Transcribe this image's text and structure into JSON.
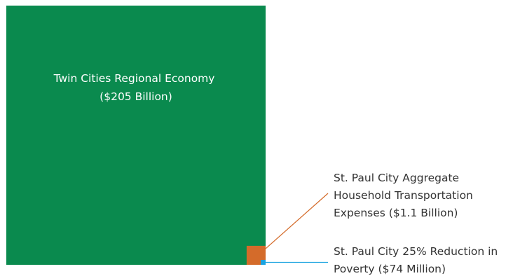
{
  "chart_data": {
    "type": "area-comparison",
    "unit": "USD",
    "items": [
      {
        "label_lines": [
          "Twin Cities Regional Economy",
          "($205 Billion)"
        ],
        "value": 205000000000,
        "color": "#0a8a4e"
      },
      {
        "label_lines": [
          "St. Paul City Aggregate",
          "Household Transportation",
          "Expenses ($1.1 Billion)"
        ],
        "value": 1100000000,
        "color": "#d46b2a"
      },
      {
        "label_lines": [
          "St. Paul City 25% Reduction in",
          "Poverty ($74 Million)"
        ],
        "value": 74000000,
        "color": "#1aa3e0"
      }
    ]
  }
}
